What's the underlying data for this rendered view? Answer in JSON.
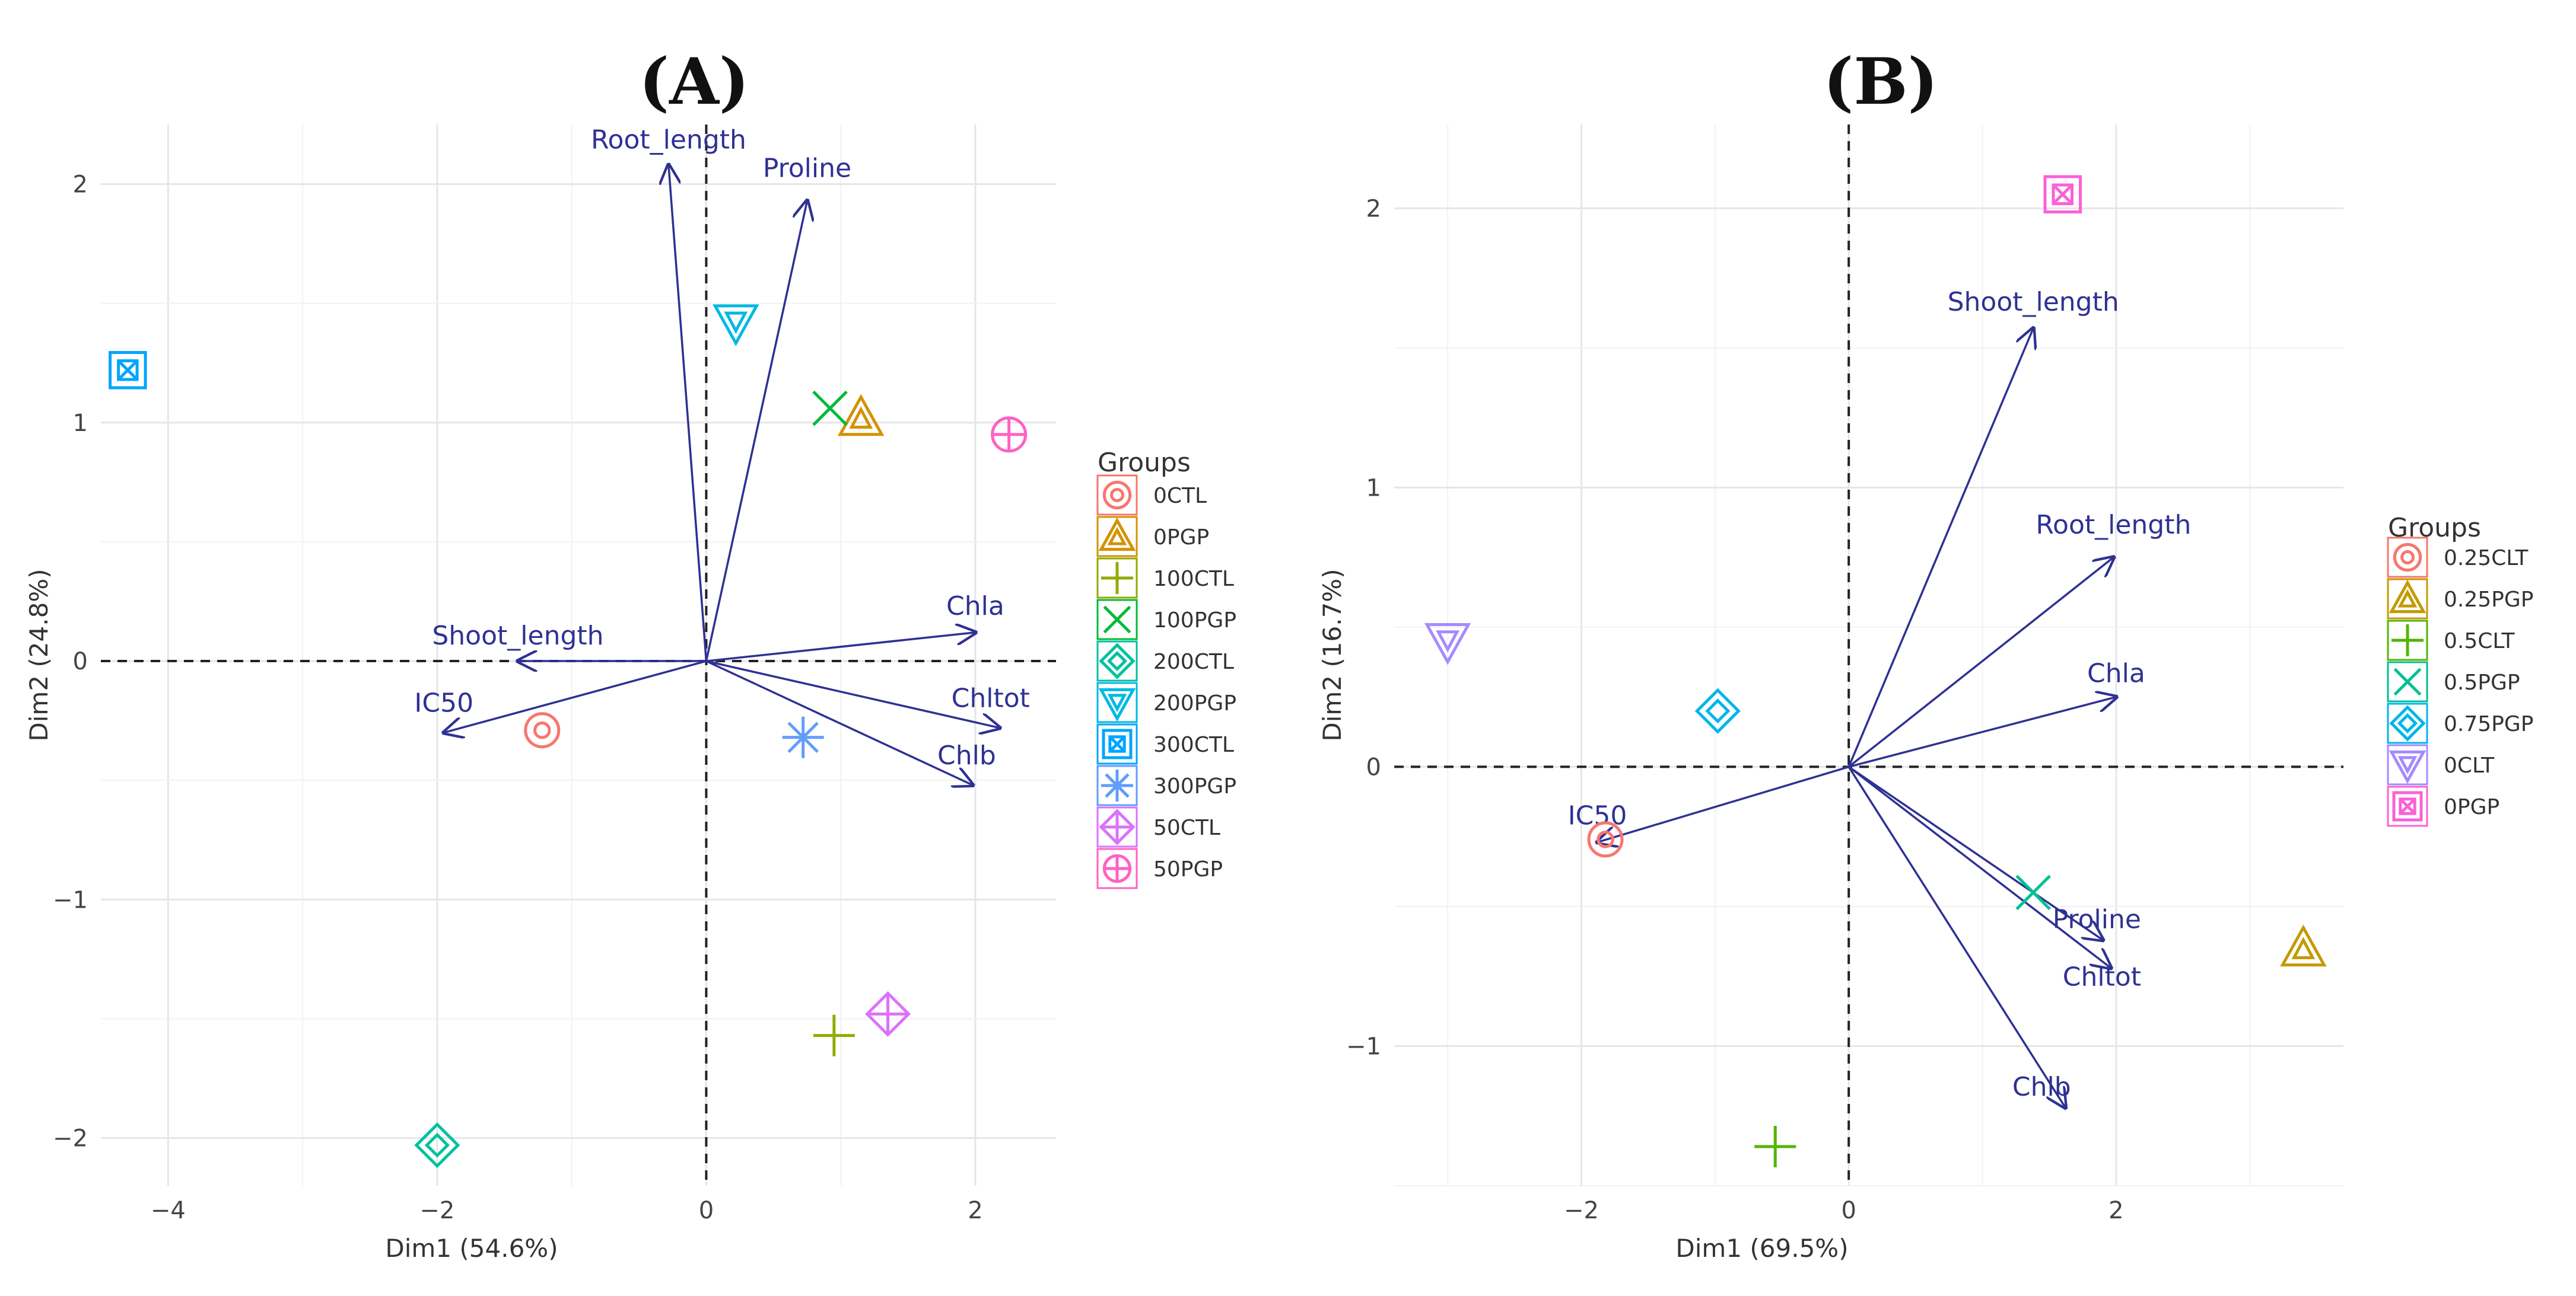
{
  "chart_data": [
    {
      "panel": "(A)",
      "type": "scatter",
      "subtype": "pca-biplot",
      "xlabel": "Dim1 (54.6%)",
      "ylabel": "Dim2 (24.8%)",
      "xlim": [
        -4.5,
        2.6
      ],
      "ylim": [
        -2.2,
        2.25
      ],
      "xticks": [
        -4,
        -2,
        0,
        2
      ],
      "yticks": [
        -2,
        -1,
        0,
        1,
        2
      ],
      "legend_title": "Groups",
      "legend_position": "right",
      "groups": [
        {
          "name": "0CTL",
          "color": "#f8766d",
          "marker": "circle",
          "x": -1.22,
          "y": -0.29
        },
        {
          "name": "0PGP",
          "color": "#d39200",
          "marker": "triangle",
          "x": 1.15,
          "y": 1.02
        },
        {
          "name": "100CTL",
          "color": "#93aa00",
          "marker": "plus",
          "x": 0.95,
          "y": -1.57
        },
        {
          "name": "100PGP",
          "color": "#00ba38",
          "marker": "cross",
          "x": 0.92,
          "y": 1.06
        },
        {
          "name": "200CTL",
          "color": "#00c19f",
          "marker": "diamond",
          "x": -2.0,
          "y": -2.03
        },
        {
          "name": "200PGP",
          "color": "#00b9e3",
          "marker": "nabla",
          "x": 0.22,
          "y": 1.42
        },
        {
          "name": "300CTL",
          "color": "#00a5ff",
          "marker": "boxX",
          "x": -4.3,
          "y": 1.22
        },
        {
          "name": "300PGP",
          "color": "#619cff",
          "marker": "asterisk",
          "x": 0.72,
          "y": -0.32
        },
        {
          "name": "50CTL",
          "color": "#db72fb",
          "marker": "diamondPlus",
          "x": 1.35,
          "y": -1.48
        },
        {
          "name": "50PGP",
          "color": "#ff61c3",
          "marker": "circlePlus",
          "x": 2.25,
          "y": 0.95
        }
      ],
      "variables": [
        {
          "name": "Root_length",
          "x": -0.28,
          "y": 2.08
        },
        {
          "name": "Proline",
          "x": 0.75,
          "y": 1.93
        },
        {
          "name": "Shoot_length",
          "x": -1.4,
          "y": 0.0
        },
        {
          "name": "IC50",
          "x": -1.95,
          "y": -0.3
        },
        {
          "name": "Chla",
          "x": 2.0,
          "y": 0.12
        },
        {
          "name": "Chltot",
          "x": 2.18,
          "y": -0.28
        },
        {
          "name": "Chlb",
          "x": 1.98,
          "y": -0.52
        }
      ]
    },
    {
      "panel": "(B)",
      "type": "scatter",
      "subtype": "pca-biplot",
      "xlabel": "Dim1 (69.5%)",
      "ylabel": "Dim2 (16.7%)",
      "xlim": [
        -3.4,
        3.7
      ],
      "ylim": [
        -1.5,
        2.3
      ],
      "xticks": [
        -2,
        0,
        2
      ],
      "yticks": [
        -1,
        0,
        1,
        2
      ],
      "legend_title": "Groups",
      "legend_position": "right",
      "groups": [
        {
          "name": "0.25CLT",
          "color": "#f8766d",
          "marker": "circle",
          "x": -1.82,
          "y": -0.26
        },
        {
          "name": "0.25PGP",
          "color": "#c49a00",
          "marker": "triangle",
          "x": 3.4,
          "y": -0.65
        },
        {
          "name": "0.5CLT",
          "color": "#53b400",
          "marker": "plus",
          "x": -0.55,
          "y": -1.36
        },
        {
          "name": "0.5PGP",
          "color": "#00c094",
          "marker": "cross",
          "x": 1.38,
          "y": -0.45
        },
        {
          "name": "0.75PGP",
          "color": "#00b6eb",
          "marker": "diamond",
          "x": -0.98,
          "y": 0.2
        },
        {
          "name": "0CLT",
          "color": "#a58aff",
          "marker": "nabla",
          "x": -3.0,
          "y": 0.45
        },
        {
          "name": "0PGP",
          "color": "#fb61d7",
          "marker": "boxX",
          "x": 1.6,
          "y": 2.05
        }
      ],
      "variables": [
        {
          "name": "Shoot_length",
          "x": 1.38,
          "y": 1.57
        },
        {
          "name": "Root_length",
          "x": 1.98,
          "y": 0.75
        },
        {
          "name": "Chla",
          "x": 2.0,
          "y": 0.25
        },
        {
          "name": "IC50",
          "x": -1.88,
          "y": -0.27
        },
        {
          "name": "Proline",
          "x": 1.9,
          "y": -0.62
        },
        {
          "name": "Chltot",
          "x": 1.96,
          "y": -0.72
        },
        {
          "name": "Chlb",
          "x": 1.62,
          "y": -1.22
        }
      ]
    }
  ]
}
